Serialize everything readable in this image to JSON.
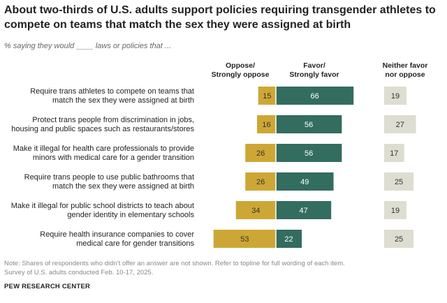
{
  "title": "About two-thirds of U.S. adults support policies requiring transgender athletes to compete on teams that match the sex they were assigned at birth",
  "subtitle": "% saying they would ____ laws or policies that ...",
  "chart_data": {
    "type": "bar",
    "orientation": "diverging horizontal",
    "categories": [
      [
        "Require trans athletes to compete on teams that",
        "match the sex they were assigned at birth"
      ],
      [
        "Protect trans people from discrimination in jobs,",
        "housing and public spaces such as restaurants/stores"
      ],
      [
        "Make it illegal for health care professionals to provide",
        "minors with medical care for a gender transition"
      ],
      [
        "Require trans people to use public bathrooms that",
        "match the sex they were assigned at birth"
      ],
      [
        "Make it illegal for public school districts to teach about",
        "gender identity in elementary schools"
      ],
      [
        "Require health insurance companies to cover",
        "medical care for gender transitions"
      ]
    ],
    "series": [
      {
        "name": "Oppose/ Strongly oppose",
        "header": [
          "Oppose/",
          "Strongly oppose"
        ],
        "color": "#cda735",
        "text_color": "#333333",
        "values": [
          15,
          16,
          26,
          26,
          34,
          53
        ]
      },
      {
        "name": "Favor/ Strongly favor",
        "header": [
          "Favor/",
          "Strongly favor"
        ],
        "color": "#336d5f",
        "text_color": "#ffffff",
        "values": [
          66,
          56,
          56,
          49,
          47,
          22
        ]
      },
      {
        "name": "Neither favor nor oppose",
        "header": [
          "Neither favor",
          "nor oppose"
        ],
        "color": "#deddd1",
        "text_color": "#333333",
        "values": [
          19,
          27,
          17,
          25,
          19,
          25
        ]
      }
    ]
  },
  "note": "Note: Shares of respondents who didn’t offer an answer are not shown. Refer to topline for full wording of each item.",
  "source": "Survey of U.S. adults conducted Feb. 10-17, 2025.",
  "brand": "PEW RESEARCH CENTER"
}
